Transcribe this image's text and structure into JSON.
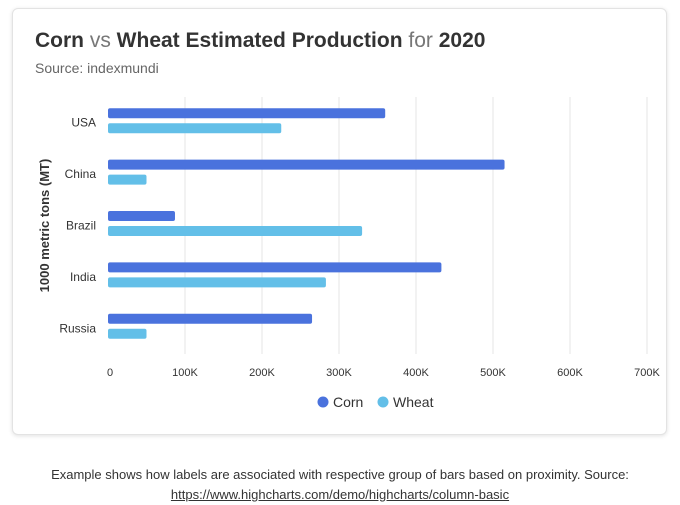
{
  "chart_data": {
    "type": "bar",
    "orientation": "horizontal",
    "title_parts": [
      {
        "text": "Corn",
        "muted": false
      },
      {
        "text": " vs ",
        "muted": true
      },
      {
        "text": "Wheat Estimated Production",
        "muted": false
      },
      {
        "text": " for ",
        "muted": true
      },
      {
        "text": "2020",
        "muted": false
      }
    ],
    "subtitle": "Source: indexmundi",
    "ylabel": "1000 metric tons (MT)",
    "categories": [
      "USA",
      "China",
      "Brazil",
      "India",
      "Russia"
    ],
    "series": [
      {
        "name": "Corn",
        "values": [
          360000,
          515000,
          87000,
          433000,
          265000
        ],
        "color": "#4a72dd"
      },
      {
        "name": "Wheat",
        "values": [
          225000,
          50000,
          330000,
          283000,
          50000
        ],
        "color": "#63bfe8"
      }
    ],
    "xlim": [
      0,
      700000
    ],
    "tick_values": [
      0,
      100000,
      200000,
      300000,
      400000,
      500000,
      600000,
      700000
    ],
    "tick_labels": [
      "0",
      "100K",
      "200K",
      "300K",
      "400K",
      "500K",
      "600K",
      "700K"
    ],
    "grid": true,
    "legend_position": "bottom"
  },
  "caption": {
    "text": "Example shows how labels are associated with respective group of bars based on proximity. Source:",
    "link": "https://www.highcharts.com/demo/highcharts/column-basic"
  }
}
